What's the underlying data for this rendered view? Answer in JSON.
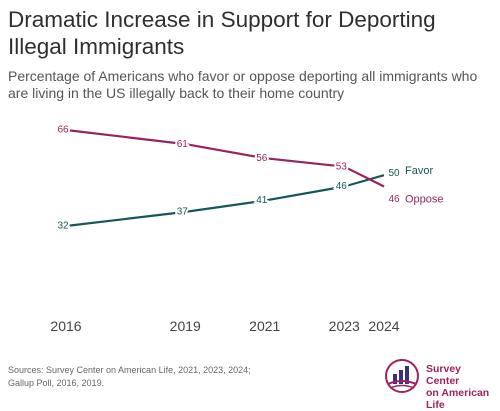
{
  "title": "Dramatic Increase in Support for Deporting Illegal Immigrants",
  "subtitle": "Percentage of Americans who favor or oppose deporting all immigrants who are living in the US illegally back to their home country",
  "chart_data": {
    "type": "line",
    "x": [
      "2016",
      "2019",
      "2021",
      "2023",
      "2024"
    ],
    "x_numeric": [
      2016,
      2019,
      2021,
      2023,
      2024
    ],
    "series": [
      {
        "name": "Favor",
        "values": [
          32,
          37,
          41,
          46,
          50
        ],
        "labels": [
          "32",
          "37",
          "41",
          "46",
          "50"
        ],
        "color": "#16575a"
      },
      {
        "name": "Oppose",
        "values": [
          66,
          61,
          56,
          53,
          46
        ],
        "labels": [
          "66",
          "61",
          "56",
          "53",
          "46"
        ],
        "color": "#97245f"
      }
    ],
    "ylim": [
      20,
      70
    ],
    "grid": false,
    "legend": "end-of-line labels"
  },
  "sources": {
    "line1": "Sources: Survey Center on American Life, 2021, 2023, 2024;",
    "line2": "Gallup Poll, 2016, 2019."
  },
  "logo": {
    "line1": "Survey Center",
    "line2": "on American Life",
    "color": "#a0225e",
    "icon": "bar-chart-globe-icon"
  }
}
